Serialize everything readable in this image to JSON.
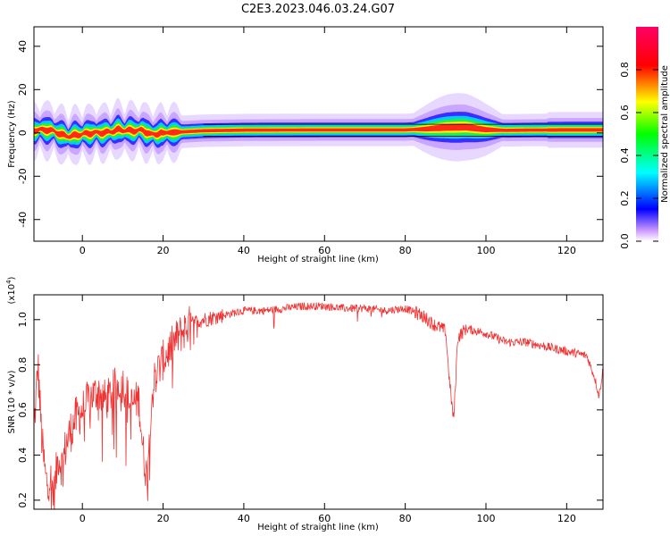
{
  "page": {
    "title": "C2E3.2023.046.03.24.G07"
  },
  "colors": {
    "snr_line": "#ee3333",
    "frame": "#000000"
  },
  "chart_data": [
    {
      "type": "heatmap",
      "title": "C2E3.2023.046.03.24.G07",
      "xlabel": "Height of straight line (km)",
      "ylabel": "Frequency (Hz)",
      "xlim": [
        -12,
        129
      ],
      "ylim": [
        -50,
        49
      ],
      "xticks": [
        0,
        20,
        40,
        60,
        80,
        100,
        120
      ],
      "xtick_labels": [
        "0",
        "20",
        "40",
        "60",
        "80",
        "100",
        "120"
      ],
      "yticks": [
        -40,
        -20,
        0,
        20,
        40
      ],
      "ytick_labels": [
        "-40",
        "-20",
        "0",
        "20",
        "40"
      ],
      "centerline_hz": [
        [
          -12,
          1.2
        ],
        [
          -9,
          1.5
        ],
        [
          -7,
          0.8
        ],
        [
          -5,
          -1.0
        ],
        [
          -3,
          -1.5
        ],
        [
          0,
          -0.5
        ],
        [
          3,
          0.0
        ],
        [
          6,
          0.2
        ],
        [
          9,
          1.5
        ],
        [
          12,
          1.0
        ],
        [
          15,
          1.2
        ],
        [
          17,
          -0.8
        ],
        [
          20,
          0.0
        ],
        [
          25,
          0.5
        ],
        [
          30,
          1.0
        ],
        [
          40,
          1.3
        ],
        [
          60,
          1.4
        ],
        [
          80,
          1.4
        ],
        [
          85,
          1.8
        ],
        [
          90,
          2.5
        ],
        [
          95,
          2.7
        ],
        [
          100,
          1.5
        ],
        [
          105,
          1.2
        ],
        [
          110,
          1.3
        ],
        [
          120,
          1.4
        ],
        [
          129,
          1.4
        ]
      ],
      "colorbar": {
        "label": "Normalized spectral amplitude",
        "range": [
          0.0,
          1.0
        ],
        "ticks": [
          0.0,
          0.2,
          0.4,
          0.6,
          0.8
        ],
        "tick_labels": [
          "0.0",
          "0.2",
          "0.4",
          "0.6",
          "0.8"
        ]
      }
    },
    {
      "type": "line",
      "xlabel": "Height of straight line (km)",
      "ylabel": "SNR (10 * v/v)",
      "multiplier": "(x10",
      "multiplier_exp": "4",
      "multiplier_close": ")",
      "xlim": [
        -12,
        129
      ],
      "ylim": [
        0.16,
        1.11
      ],
      "xticks": [
        0,
        20,
        40,
        60,
        80,
        100,
        120
      ],
      "xtick_labels": [
        "0",
        "20",
        "40",
        "60",
        "80",
        "100",
        "120"
      ],
      "yticks": [
        0.2,
        0.4,
        0.6,
        0.8,
        1.0
      ],
      "ytick_labels": [
        "0.2",
        "0.4",
        "0.6",
        "0.8",
        "1.0"
      ],
      "series": [
        {
          "name": "SNR",
          "x": [
            -12,
            -11,
            -10,
            -9,
            -8,
            -7,
            -6,
            -5,
            -4,
            -2,
            0,
            2,
            4,
            6,
            8,
            10,
            12,
            14,
            15,
            16,
            17,
            18,
            20,
            22,
            24,
            26,
            28,
            30,
            35,
            40,
            45,
            50,
            55,
            60,
            65,
            70,
            75,
            80,
            84,
            87,
            89,
            90,
            91,
            92,
            93,
            95,
            100,
            105,
            110,
            115,
            120,
            125,
            127,
            128,
            129
          ],
          "y": [
            0.5,
            0.8,
            0.45,
            0.28,
            0.3,
            0.22,
            0.4,
            0.35,
            0.45,
            0.55,
            0.6,
            0.66,
            0.68,
            0.64,
            0.7,
            0.72,
            0.62,
            0.65,
            0.42,
            0.3,
            0.62,
            0.75,
            0.82,
            0.88,
            0.93,
            0.97,
            0.99,
            1.0,
            1.02,
            1.04,
            1.04,
            1.05,
            1.06,
            1.06,
            1.05,
            1.05,
            1.04,
            1.05,
            1.02,
            0.98,
            0.96,
            0.95,
            0.72,
            0.55,
            0.92,
            0.96,
            0.94,
            0.9,
            0.9,
            0.88,
            0.86,
            0.84,
            0.74,
            0.66,
            0.78
          ]
        }
      ]
    }
  ]
}
